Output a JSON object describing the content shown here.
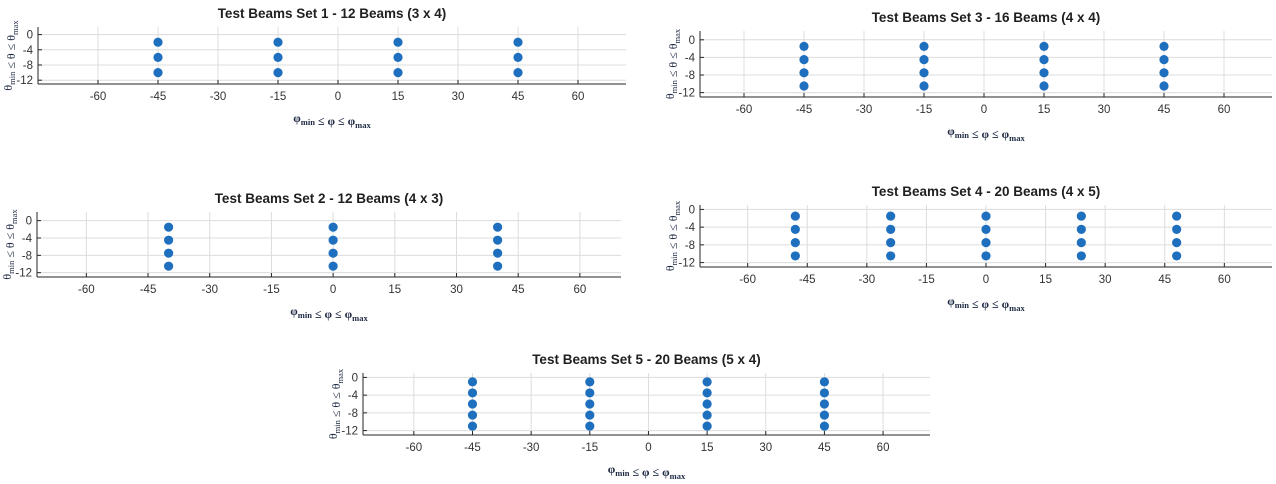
{
  "chart_data": [
    {
      "type": "scatter",
      "title": "Test Beams Set 1 - 12 Beams (3 x 4)",
      "xlabel": "φmin ≤ φ ≤ φmax",
      "ylabel": "θmin ≤ θ ≤ θmax",
      "xlim": [
        -75,
        72
      ],
      "ylim": [
        -13,
        2
      ],
      "xticks": [
        -60,
        -45,
        -30,
        -15,
        0,
        15,
        30,
        45,
        60
      ],
      "yticks": [
        0,
        -4,
        -8,
        -12
      ],
      "grid": true,
      "marker_color": "#1f6fbf",
      "x": [
        -45,
        -45,
        -45,
        -15,
        -15,
        -15,
        15,
        15,
        15,
        45,
        45,
        45
      ],
      "y": [
        -2,
        -6,
        -10,
        -2,
        -6,
        -10,
        -2,
        -6,
        -10,
        -2,
        -6,
        -10
      ]
    },
    {
      "type": "scatter",
      "title": "Test Beams Set 2 - 12 Beams (4 x 3)",
      "xlabel": "φmin ≤ φ ≤ φmax",
      "ylabel": "θmin ≤ θ ≤ θmax",
      "xlim": [
        -72,
        70
      ],
      "ylim": [
        -13,
        2
      ],
      "xticks": [
        -60,
        -45,
        -30,
        -15,
        0,
        15,
        30,
        45,
        60
      ],
      "yticks": [
        0,
        -4,
        -8,
        -12
      ],
      "grid": true,
      "marker_color": "#1f6fbf",
      "x": [
        -40,
        -40,
        -40,
        -40,
        0,
        0,
        0,
        0,
        40,
        40,
        40,
        40
      ],
      "y": [
        -1.5,
        -4.5,
        -7.5,
        -10.5,
        -1.5,
        -4.5,
        -7.5,
        -10.5,
        -1.5,
        -4.5,
        -7.5,
        -10.5
      ]
    },
    {
      "type": "scatter",
      "title": "Test Beams Set 3 - 16 Beams (4 x 4)",
      "xlabel": "φmin ≤ φ ≤ φmax",
      "ylabel": "θmin ≤ θ ≤ θmax",
      "xlim": [
        -71,
        72
      ],
      "ylim": [
        -13,
        2
      ],
      "xticks": [
        -60,
        -45,
        -30,
        -15,
        0,
        15,
        30,
        45,
        60
      ],
      "yticks": [
        0,
        -4,
        -8,
        -12
      ],
      "grid": true,
      "marker_color": "#1f6fbf",
      "x": [
        -45,
        -45,
        -45,
        -45,
        -15,
        -15,
        -15,
        -15,
        15,
        15,
        15,
        15,
        45,
        45,
        45,
        45
      ],
      "y": [
        -1.5,
        -4.5,
        -7.5,
        -10.5,
        -1.5,
        -4.5,
        -7.5,
        -10.5,
        -1.5,
        -4.5,
        -7.5,
        -10.5,
        -1.5,
        -4.5,
        -7.5,
        -10.5
      ]
    },
    {
      "type": "scatter",
      "title": "Test Beams Set 4 - 20 Beams (4 x 5)",
      "xlabel": "φmin ≤ φ ≤ φmax",
      "ylabel": "θmin ≤ θ ≤ θmax",
      "xlim": [
        -72,
        72
      ],
      "ylim": [
        -13,
        1
      ],
      "xticks": [
        -60,
        -45,
        -30,
        -15,
        0,
        15,
        30,
        45,
        60
      ],
      "yticks": [
        0,
        -4,
        -8,
        -12
      ],
      "grid": true,
      "marker_color": "#1f6fbf",
      "x": [
        -48,
        -48,
        -48,
        -48,
        -24,
        -24,
        -24,
        -24,
        0,
        0,
        0,
        0,
        24,
        24,
        24,
        24,
        48,
        48,
        48,
        48
      ],
      "y": [
        -1.5,
        -4.5,
        -7.5,
        -10.5,
        -1.5,
        -4.5,
        -7.5,
        -10.5,
        -1.5,
        -4.5,
        -7.5,
        -10.5,
        -1.5,
        -4.5,
        -7.5,
        -10.5,
        -1.5,
        -4.5,
        -7.5,
        -10.5
      ]
    },
    {
      "type": "scatter",
      "title": "Test Beams Set 5 - 20 Beams (5 x 4)",
      "xlabel": "φmin ≤ φ ≤ φmax",
      "ylabel": "θmin ≤ θ ≤ θmax",
      "xlim": [
        -73,
        72
      ],
      "ylim": [
        -13,
        1
      ],
      "xticks": [
        -60,
        -45,
        -30,
        -15,
        0,
        15,
        30,
        45,
        60
      ],
      "yticks": [
        0,
        -4,
        -8,
        -12
      ],
      "grid": true,
      "marker_color": "#1f6fbf",
      "x": [
        -45,
        -45,
        -45,
        -45,
        -45,
        -15,
        -15,
        -15,
        -15,
        -15,
        15,
        15,
        15,
        15,
        15,
        45,
        45,
        45,
        45,
        45
      ],
      "y": [
        -1,
        -3.5,
        -6,
        -8.5,
        -11,
        -1,
        -3.5,
        -6,
        -8.5,
        -11,
        -1,
        -3.5,
        -6,
        -8.5,
        -11,
        -1,
        -3.5,
        -6,
        -8.5,
        -11
      ]
    }
  ]
}
